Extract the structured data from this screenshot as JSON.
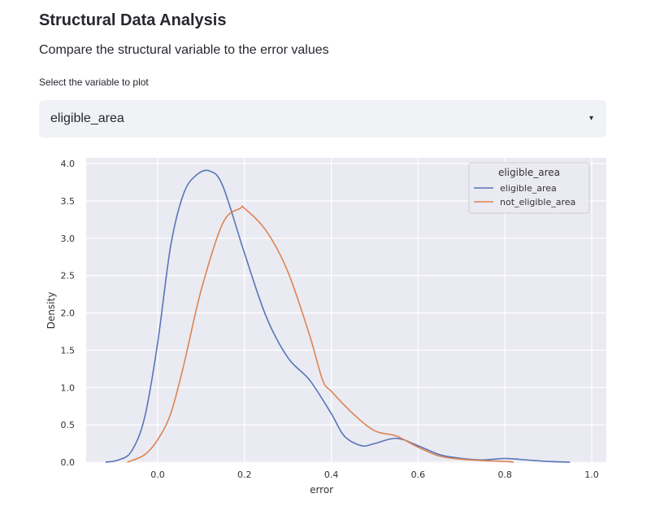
{
  "header": {
    "title": "Structural Data Analysis",
    "subtitle": "Compare the structural variable to the error values"
  },
  "select": {
    "label": "Select the variable to plot",
    "value": "eligible_area",
    "caret_icon": "▾"
  },
  "chart_data": {
    "type": "line",
    "title": "",
    "xlabel": "error",
    "ylabel": "Density",
    "xlim": [
      -0.13,
      1.0
    ],
    "ylim": [
      0,
      4.0
    ],
    "x_ticks": [
      0.0,
      0.2,
      0.4,
      0.6,
      0.8,
      1.0
    ],
    "x_tick_labels": [
      "0.0",
      "0.2",
      "0.4",
      "0.6",
      "0.8",
      "1.0"
    ],
    "y_ticks": [
      0.0,
      0.5,
      1.0,
      1.5,
      2.0,
      2.5,
      3.0,
      3.5,
      4.0
    ],
    "y_tick_labels": [
      "0.0",
      "0.5",
      "1.0",
      "1.5",
      "2.0",
      "2.5",
      "3.0",
      "3.5",
      "4.0"
    ],
    "grid": true,
    "legend": {
      "title": "eligible_area",
      "placement": "top-right"
    },
    "series": [
      {
        "name": "eligible_area",
        "color": "#5875b8",
        "x": [
          -0.12,
          -0.09,
          -0.06,
          -0.03,
          0.0,
          0.03,
          0.06,
          0.09,
          0.12,
          0.15,
          0.2,
          0.25,
          0.3,
          0.35,
          0.4,
          0.43,
          0.47,
          0.5,
          0.55,
          0.6,
          0.65,
          0.7,
          0.75,
          0.8,
          0.85,
          0.9,
          0.95
        ],
        "y": [
          0.0,
          0.03,
          0.15,
          0.6,
          1.6,
          2.9,
          3.6,
          3.85,
          3.9,
          3.7,
          2.8,
          1.95,
          1.4,
          1.1,
          0.65,
          0.35,
          0.22,
          0.25,
          0.32,
          0.22,
          0.1,
          0.05,
          0.03,
          0.05,
          0.03,
          0.01,
          0.0
        ]
      },
      {
        "name": "not_eligible_area",
        "color": "#dd8452",
        "x": [
          -0.07,
          -0.03,
          0.0,
          0.03,
          0.06,
          0.1,
          0.15,
          0.19,
          0.2,
          0.25,
          0.3,
          0.35,
          0.38,
          0.4,
          0.45,
          0.5,
          0.55,
          0.6,
          0.65,
          0.7,
          0.75,
          0.8,
          0.82
        ],
        "y": [
          0.0,
          0.1,
          0.3,
          0.65,
          1.3,
          2.3,
          3.2,
          3.4,
          3.4,
          3.1,
          2.55,
          1.7,
          1.1,
          0.95,
          0.65,
          0.42,
          0.35,
          0.2,
          0.08,
          0.04,
          0.02,
          0.01,
          0.0
        ]
      }
    ]
  }
}
